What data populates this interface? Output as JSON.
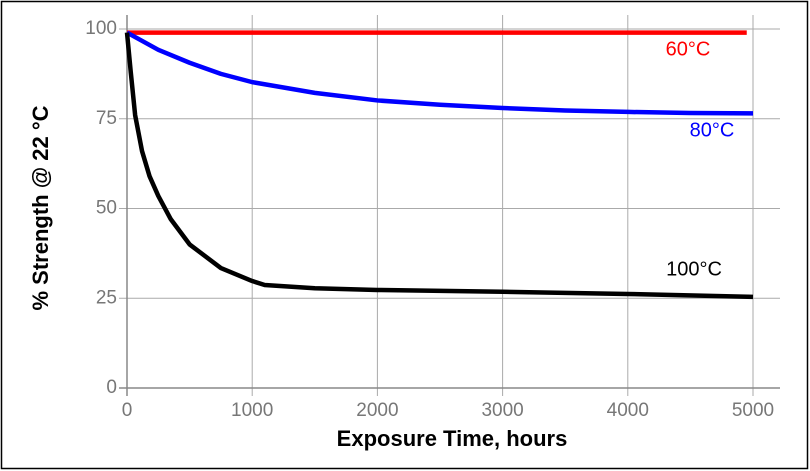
{
  "chart_data": {
    "type": "line",
    "x_label": "Exposure Time, hours",
    "y_label": "% Strength @ 22 °C",
    "xlim": [
      0,
      5000
    ],
    "ylim": [
      0,
      100
    ],
    "xticks": [
      0,
      1000,
      2000,
      3000,
      4000,
      5000
    ],
    "yticks": [
      0,
      25,
      50,
      75,
      100
    ],
    "grid": true,
    "series": [
      {
        "name": "60°C",
        "color": "#ff0000",
        "x": [
          0,
          4950
        ],
        "values": [
          99,
          99
        ]
      },
      {
        "name": "80°C",
        "color": "#0000ff",
        "x": [
          0,
          250,
          500,
          750,
          1000,
          1500,
          2000,
          2500,
          3000,
          3500,
          4000,
          4500,
          5000
        ],
        "values": [
          99,
          94.2,
          90.6,
          87.5,
          85.2,
          82.2,
          80.1,
          78.9,
          78,
          77.3,
          76.9,
          76.6,
          76.5
        ]
      },
      {
        "name": "100°C",
        "color": "#000000",
        "x": [
          0,
          30,
          65,
          120,
          180,
          250,
          350,
          500,
          750,
          1000,
          1100,
          1500,
          2000,
          3000,
          4000,
          5000
        ],
        "values": [
          99,
          88,
          76,
          66,
          59,
          53.5,
          47,
          40,
          33.4,
          29.8,
          28.7,
          27.8,
          27.3,
          26.8,
          26.2,
          25.4
        ]
      }
    ]
  }
}
